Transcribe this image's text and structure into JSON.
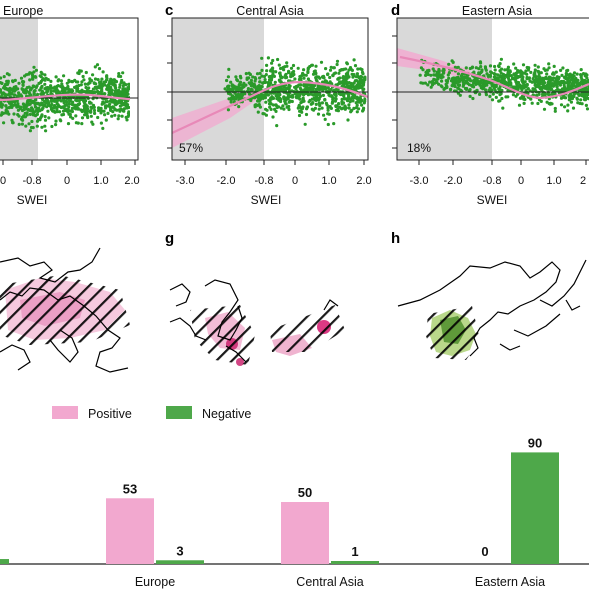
{
  "colors": {
    "positive": "#f2a8cf",
    "negative": "#4ea84a",
    "scatter_point": "#2a9a2a",
    "trend_line": "#e889b8",
    "shade": "#d9d9d9",
    "map_positive": "#d6186f",
    "map_negative": "#7fb24a"
  },
  "scatter_panels": [
    {
      "letter": "",
      "title": "Europe",
      "percent": "",
      "ticks": [
        "0",
        "-0.8",
        "0",
        "1.0",
        "2.0"
      ],
      "xlabel": "SWEI"
    },
    {
      "letter": "c",
      "title": "Central Asia",
      "percent": "57%",
      "ticks": [
        "-3.0",
        "-2.0",
        "-0.8",
        "0",
        "1.0",
        "2.0"
      ],
      "xlabel": "SWEI"
    },
    {
      "letter": "d",
      "title": "Eastern Asia",
      "percent": "18%",
      "ticks": [
        "-3.0",
        "-2.0",
        "-0.8",
        "0",
        "1.0",
        "2"
      ],
      "xlabel": "SWEI"
    }
  ],
  "map_panels": [
    {
      "letter": "",
      "region": "Europe"
    },
    {
      "letter": "g",
      "region": "Central Asia"
    },
    {
      "letter": "h",
      "region": "Eastern Asia"
    }
  ],
  "legend": {
    "positive": "Positive",
    "negative": "Negative"
  },
  "chart_data": {
    "type": "bar",
    "categories": [
      "",
      "Europe",
      "Central Asia",
      "Eastern Asia"
    ],
    "series": [
      {
        "name": "Positive",
        "values": [
          null,
          53,
          50,
          0
        ]
      },
      {
        "name": "Negative",
        "values": [
          4,
          3,
          1,
          90
        ]
      }
    ],
    "ylim": [
      0,
      100
    ]
  }
}
